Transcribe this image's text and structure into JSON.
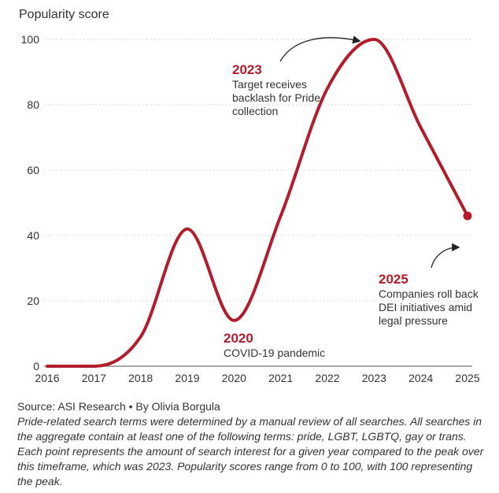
{
  "chart_data": {
    "type": "line",
    "ylabel": "Popularity score",
    "x": [
      2016,
      2017,
      2018,
      2019,
      2020,
      2021,
      2022,
      2023,
      2024,
      2025
    ],
    "xticks": [
      "2016",
      "2017",
      "2018",
      "2019",
      "2020",
      "2021",
      "2022",
      "2023",
      "2024",
      "2025"
    ],
    "yticks": [
      "0",
      "20",
      "40",
      "60",
      "80",
      "100"
    ],
    "ylim": [
      0,
      100
    ],
    "xlim": [
      2016,
      2025
    ],
    "grid": "horizontal",
    "series": [
      {
        "values": [
          0,
          0,
          9,
          42,
          14,
          46,
          85,
          100,
          73,
          46
        ]
      }
    ],
    "color": "#b31d2b",
    "annotations": [
      {
        "year": "2023",
        "text": "Target receives\nbacklash for Pride\ncollection"
      },
      {
        "year": "2020",
        "text": "COVID-19 pandemic"
      },
      {
        "year": "2025",
        "text": "Companies roll back\nDEI initiatives amid\nlegal pressure"
      }
    ]
  },
  "footer": {
    "source": "Source: ASI Research • By Olivia Borgula",
    "notes": "Pride-related search terms were determined by a manual review of all searches. All searches in the aggregate contain at least one of the following terms: pride, LGBT, LGBTQ, gay or trans. Each point represents the amount of search interest for a given year compared to the peak over this timeframe, which was 2023. Popularity scores range from 0 to 100, with 100 representing the peak."
  }
}
